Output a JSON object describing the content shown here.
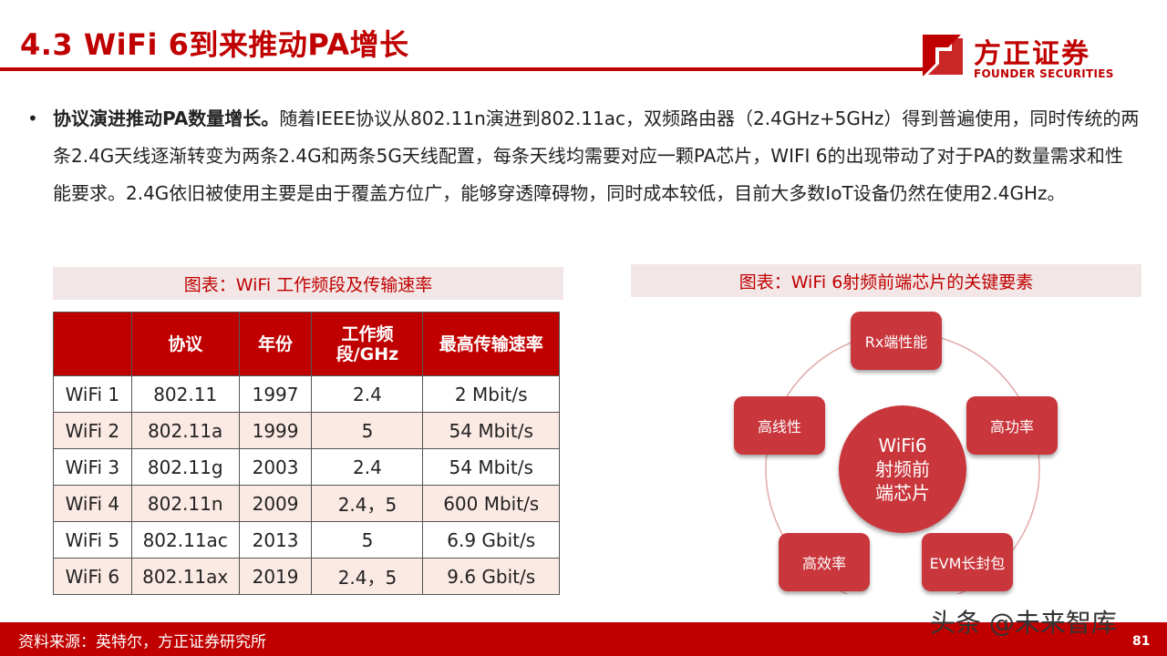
{
  "header": {
    "title": "4.3 WiFi 6到来推动PA增长",
    "logo_cn": "方正证券",
    "logo_en": "FOUNDER SECURITIES"
  },
  "paragraph": {
    "bullet": "•",
    "lead": "协议演进推动PA数量增长。",
    "text": "随着IEEE协议从802.11n演进到802.11ac，双频路由器（2.4GHz+5GHz）得到普遍使用，同时传统的两条2.4G天线逐渐转变为两条2.4G和两条5G天线配置，每条天线均需要对应一颗PA芯片，WIFI 6的出现带动了对于PA的数量需求和性能要求。2.4G依旧被使用主要是由于覆盖方位广，能够穿透障碍物，同时成本较低，目前大多数IoT设备仍然在使用2.4GHz。"
  },
  "table_caption": "图表：WiFi 工作频段及传输速率",
  "diagram_caption": "图表：WiFi 6射频前端芯片的关键要素",
  "table": {
    "headers": [
      "",
      "协议",
      "年份",
      "工作频段/GHz",
      "最高传输速率"
    ],
    "rows": [
      [
        "WiFi 1",
        "802.11",
        "1997",
        "2.4",
        "2 Mbit/s"
      ],
      [
        "WiFi 2",
        "802.11a",
        "1999",
        "5",
        "54 Mbit/s"
      ],
      [
        "WiFi 3",
        "802.11g",
        "2003",
        "2.4",
        "54 Mbit/s"
      ],
      [
        "WiFi 4",
        "802.11n",
        "2009",
        "2.4，5",
        "600 Mbit/s"
      ],
      [
        "WiFi 5",
        "802.11ac",
        "2013",
        "5",
        "6.9 Gbit/s"
      ],
      [
        "WiFi 6",
        "802.11ax",
        "2019",
        "2.4，5",
        "9.6 Gbit/s"
      ]
    ]
  },
  "diagram": {
    "center_line1": "WiFi6",
    "center_line2": "射频前",
    "center_line3": "端芯片",
    "nodes": {
      "top": "Rx端性能",
      "right": "高功率",
      "bottom_right": "EVM长封包",
      "bottom_left": "高效率",
      "left": "高线性"
    }
  },
  "footer": {
    "source": "资料来源：英特尔，方正证券研究所",
    "watermark": "头条 @未来智库",
    "page": "81"
  },
  "colors": {
    "accent": "#c00000",
    "node": "#c9363c",
    "caption_bg": "#f2e6e6",
    "row_alt": "#fbe9e4"
  }
}
